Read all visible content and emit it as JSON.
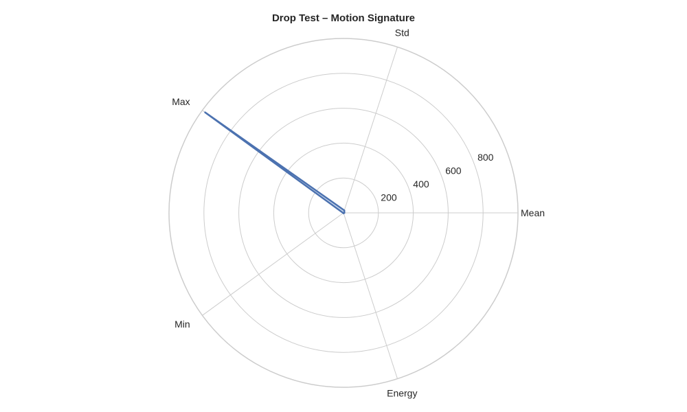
{
  "chart_data": {
    "type": "radar",
    "title": "Drop Test – Motion Signature",
    "axes": [
      "Mean",
      "Std",
      "Max",
      "Min",
      "Energy"
    ],
    "rmax": 1000,
    "ticks": [
      200,
      400,
      600,
      800
    ],
    "tick_labels": [
      "200",
      "400",
      "600",
      "800"
    ],
    "series": [
      {
        "values": [
          5,
          15,
          980,
          2,
          3
        ],
        "color": "#4c72b0",
        "fill": "#c7d6ec"
      }
    ],
    "grid": true
  }
}
